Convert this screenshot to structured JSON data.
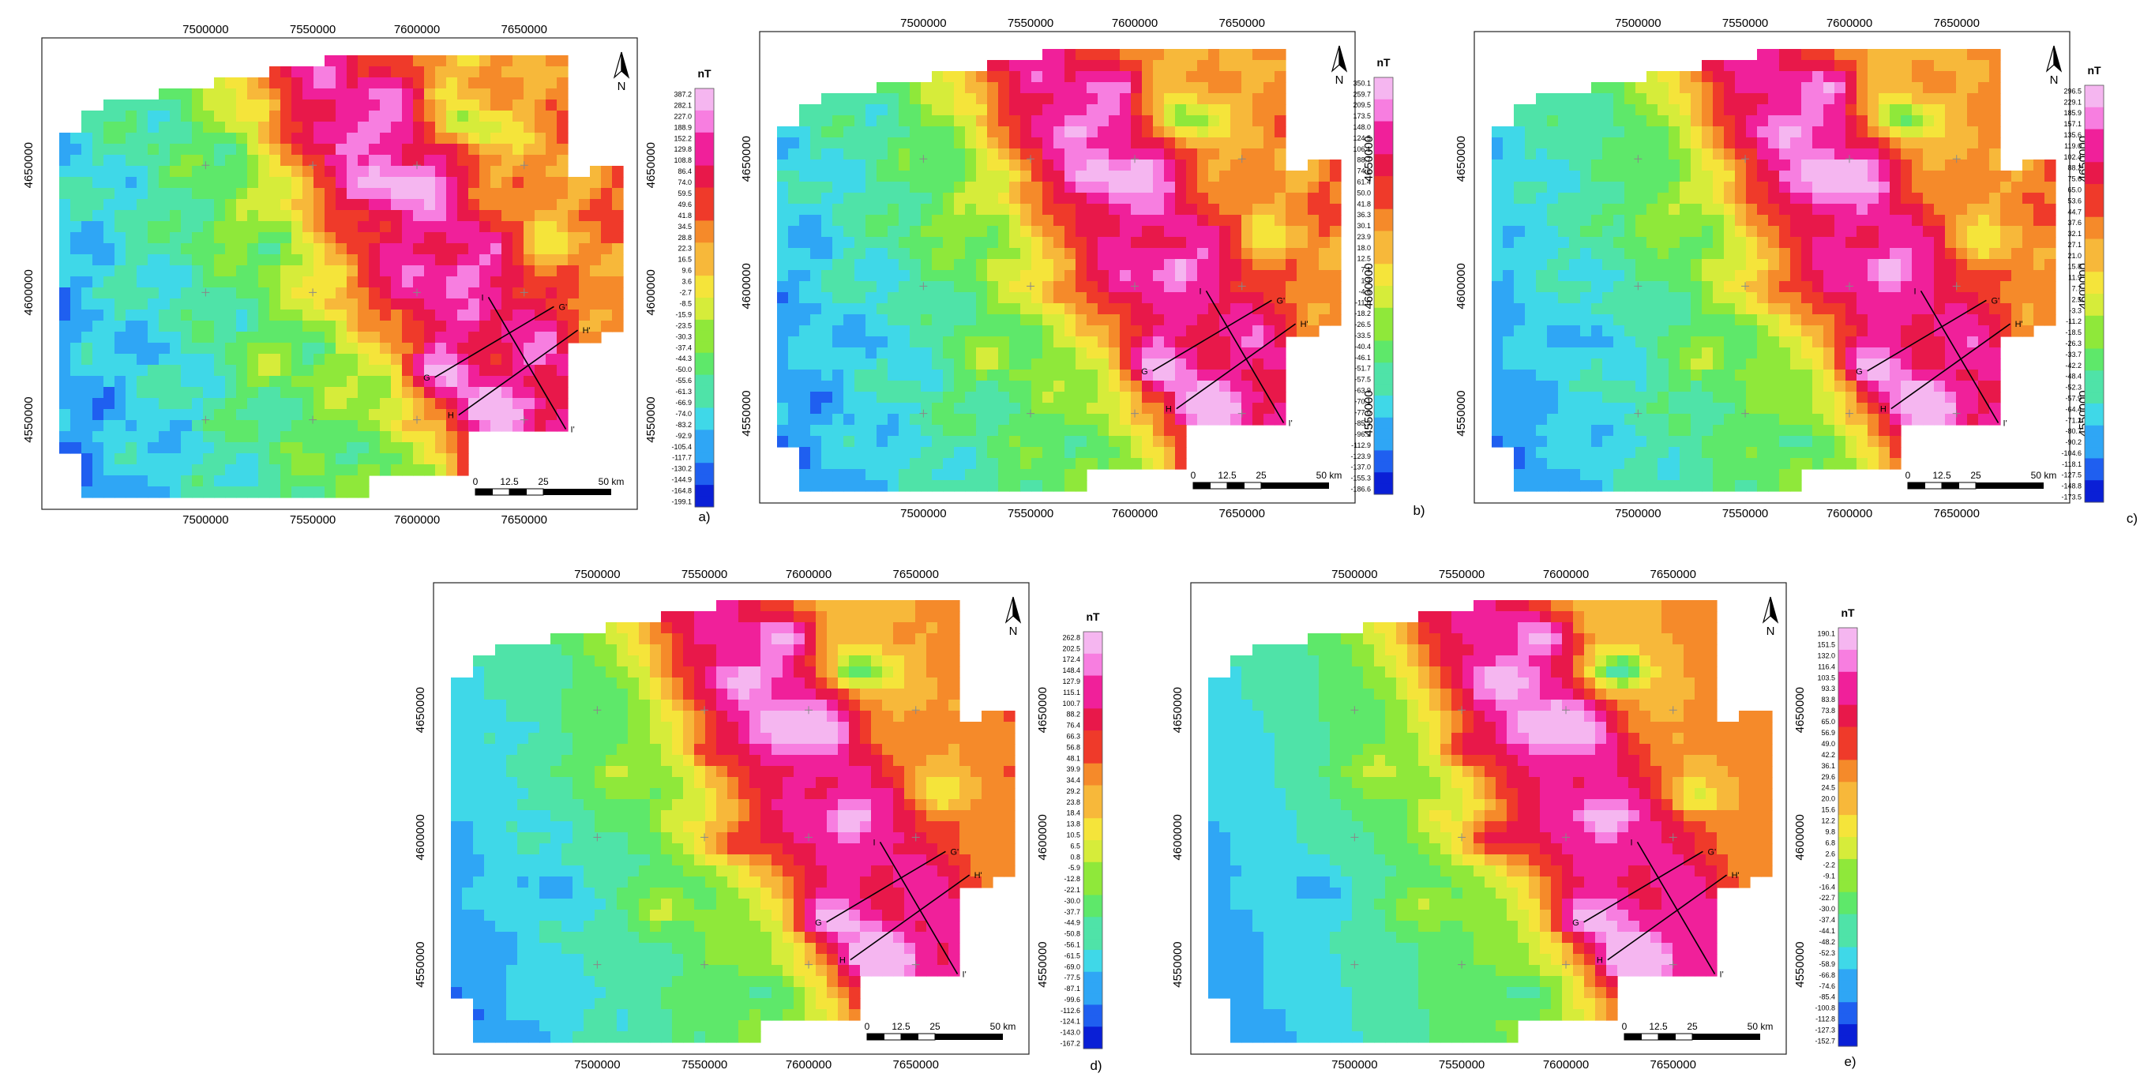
{
  "unit_label": "nT",
  "north_label": "N",
  "scale_ticks": [
    "0",
    "12.5",
    "25",
    "50 km"
  ],
  "x_ticks": [
    "7500000",
    "7550000",
    "7600000",
    "7650000"
  ],
  "y_ticks": [
    "4650000",
    "4600000",
    "4550000"
  ],
  "profile_labels": [
    "I",
    "I'",
    "H",
    "H'",
    "G",
    "G'"
  ],
  "colors": {
    "ramp": [
      "#0a1fd6",
      "#1f5ff0",
      "#2fa6f5",
      "#3fd8e8",
      "#4fe3a8",
      "#5ee86a",
      "#8fe83a",
      "#d6ec3a",
      "#f5e43a",
      "#f7b83a",
      "#f58a2a",
      "#ef3a2a",
      "#e8184a",
      "#f0209a",
      "#f77ee0",
      "#f5b6f0"
    ]
  },
  "panels": [
    {
      "id": "a",
      "caption": "a)",
      "legend": [
        "387.2",
        "282.1",
        "227.0",
        "188.9",
        "152.2",
        "129.8",
        "108.8",
        "86.4",
        "74.0",
        "59.5",
        "49.6",
        "41.8",
        "34.5",
        "28.8",
        "22.3",
        "16.5",
        "9.6",
        "3.6",
        "-2.7",
        "-8.5",
        "-15.9",
        "-23.5",
        "-30.3",
        "-37.4",
        "-44.3",
        "-50.0",
        "-55.6",
        "-61.3",
        "-66.9",
        "-74.0",
        "-83.2",
        "-92.9",
        "-105.4",
        "-117.7",
        "-130.2",
        "-144.9",
        "-164.8",
        "-199.1"
      ]
    },
    {
      "id": "b",
      "caption": "b)",
      "legend": [
        "350.1",
        "259.7",
        "209.5",
        "173.5",
        "148.0",
        "124.5",
        "106.1",
        "88.7",
        "74.2",
        "61.4",
        "50.0",
        "41.8",
        "36.3",
        "30.1",
        "23.9",
        "18.0",
        "12.5",
        "7.1",
        "1.3",
        "-4.6",
        "-11.0",
        "-18.2",
        "-26.5",
        "-33.5",
        "-40.4",
        "-46.1",
        "-51.7",
        "-57.5",
        "-63.9",
        "-70.1",
        "-77.0",
        "-85.3",
        "-96.2",
        "-112.9",
        "-123.9",
        "-137.0",
        "-155.3",
        "-186.6"
      ]
    },
    {
      "id": "c",
      "caption": "c)",
      "legend": [
        "296.5",
        "229.1",
        "185.9",
        "157.1",
        "135.6",
        "119.0",
        "102.4",
        "88.2",
        "75.6",
        "65.0",
        "53.6",
        "44.7",
        "37.6",
        "32.1",
        "27.1",
        "21.0",
        "15.8",
        "11.9",
        "7.7",
        "2.5",
        "-3.3",
        "-11.2",
        "-18.5",
        "-26.3",
        "-33.7",
        "-42.2",
        "-48.4",
        "-52.3",
        "-57.9",
        "-64.4",
        "-71.2",
        "-80.7",
        "-90.2",
        "-104.6",
        "-118.1",
        "-127.5",
        "-148.8",
        "-173.5"
      ]
    },
    {
      "id": "d",
      "caption": "d)",
      "legend": [
        "262.8",
        "202.5",
        "172.4",
        "148.4",
        "127.9",
        "115.1",
        "100.7",
        "88.2",
        "76.4",
        "66.3",
        "56.8",
        "48.1",
        "39.9",
        "34.4",
        "29.2",
        "23.8",
        "18.4",
        "13.8",
        "10.5",
        "6.5",
        "0.8",
        "-5.9",
        "-12.8",
        "-22.1",
        "-30.0",
        "-37.7",
        "-44.9",
        "-50.8",
        "-56.1",
        "-61.5",
        "-69.0",
        "-77.5",
        "-87.1",
        "-99.6",
        "-112.6",
        "-124.1",
        "-143.0",
        "-167.2"
      ]
    },
    {
      "id": "e",
      "caption": "e)",
      "legend": [
        "190.1",
        "151.5",
        "132.0",
        "116.4",
        "103.5",
        "93.3",
        "83.8",
        "73.8",
        "65.0",
        "56.9",
        "49.0",
        "42.2",
        "36.1",
        "29.6",
        "24.5",
        "20.0",
        "15.6",
        "12.2",
        "9.8",
        "6.8",
        "2.6",
        "-2.2",
        "-9.1",
        "-16.4",
        "-22.7",
        "-30.0",
        "-37.4",
        "-44.1",
        "-48.2",
        "-52.3",
        "-58.9",
        "-66.8",
        "-74.6",
        "-85.4",
        "-100.8",
        "-112.8",
        "-127.3",
        "-152.7"
      ]
    }
  ]
}
